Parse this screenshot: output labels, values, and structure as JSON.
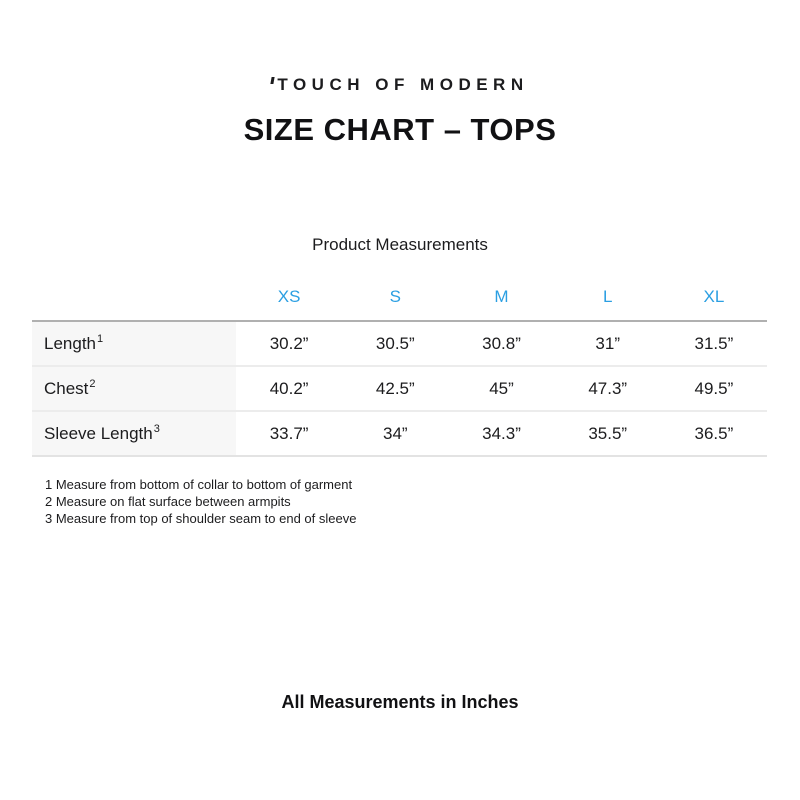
{
  "brand": {
    "logo_text": "TOUCH OF MODERN",
    "logo_tick_icon": "slanted-tick-mark"
  },
  "header": {
    "title": "SIZE CHART – TOPS"
  },
  "measurements": {
    "heading": "Product Measurements",
    "columns": [
      "XS",
      "S",
      "M",
      "L",
      "XL"
    ],
    "rows": [
      {
        "label": "Length",
        "footnote_ref": "1",
        "values": [
          "30.2”",
          "30.5”",
          "30.8”",
          "31”",
          "31.5”"
        ]
      },
      {
        "label": "Chest",
        "footnote_ref": "2",
        "values": [
          "40.2”",
          "42.5”",
          "45”",
          "47.3”",
          "49.5”"
        ]
      },
      {
        "label": "Sleeve Length",
        "footnote_ref": "3",
        "values": [
          "33.7”",
          "34”",
          "34.3”",
          "35.5”",
          "36.5”"
        ]
      }
    ],
    "footnotes": [
      "1 Measure from bottom of collar to bottom of garment",
      "2 Measure on flat surface between armpits",
      "3 Measure from top of shoulder seam to end of sleeve"
    ]
  },
  "footer": {
    "note": "All Measurements in Inches"
  },
  "colors": {
    "accent_blue": "#2b9fe2",
    "label_column_bg": "#f7f7f7",
    "table_top_border": "#b0b0b0",
    "table_inner_border": "#ececec"
  }
}
